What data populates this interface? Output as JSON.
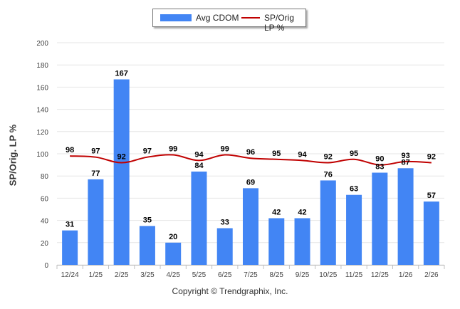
{
  "chart_data": {
    "type": "bar",
    "categories": [
      "12/24",
      "1/25",
      "2/25",
      "3/25",
      "4/25",
      "5/25",
      "6/25",
      "7/25",
      "8/25",
      "9/25",
      "10/25",
      "11/25",
      "12/25",
      "1/26",
      "2/26"
    ],
    "series": [
      {
        "name": "Avg CDOM",
        "kind": "bar",
        "color": "#4285f4",
        "values": [
          31,
          77,
          167,
          35,
          20,
          84,
          33,
          69,
          42,
          42,
          76,
          63,
          83,
          87,
          57
        ]
      },
      {
        "name": "SP/Orig LP %",
        "kind": "line",
        "color": "#c00000",
        "values": [
          98,
          97,
          92,
          97,
          99,
          94,
          99,
          96,
          95,
          94,
          92,
          95,
          90,
          93,
          92
        ]
      }
    ],
    "ylabel": "SP/Orig. LP %",
    "ylim": [
      0,
      200
    ],
    "yticks": [
      0,
      20,
      40,
      60,
      80,
      100,
      120,
      140,
      160,
      180,
      200
    ],
    "grid": true,
    "legend": "top-center"
  },
  "legend": {
    "bar_label": "Avg CDOM",
    "line_label": "SP/Orig LP %"
  },
  "footer": {
    "copyright": "Copyright © Trendgraphix, Inc."
  }
}
